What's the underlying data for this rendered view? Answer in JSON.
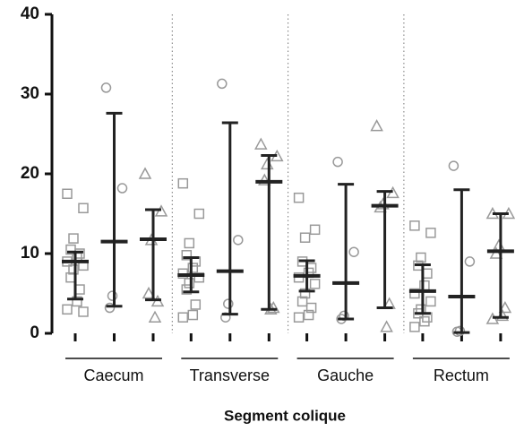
{
  "chart_data": {
    "type": "dot-plot",
    "x_label": "Segment colique",
    "categories": [
      "Caecum",
      "Transverse",
      "Gauche",
      "Rectum"
    ],
    "ylim": [
      0,
      40
    ],
    "yticks": [
      0,
      10,
      20,
      30,
      40
    ],
    "series": [
      {
        "marker": "square",
        "color": "#999999",
        "bar_color": "#222222",
        "points": [
          [
            17.5,
            15.7,
            11.9,
            10.5,
            10,
            9.5,
            9,
            8.5,
            8,
            7,
            5.5,
            4,
            3,
            2.7
          ],
          [
            18.8,
            15,
            11.3,
            9.8,
            9,
            8.2,
            7.5,
            7,
            6.3,
            5.5,
            3.6,
            2.3,
            2
          ],
          [
            17,
            13,
            12,
            9,
            8.2,
            7.6,
            7,
            6.2,
            5,
            4,
            3.2,
            2.3,
            2
          ],
          [
            13.5,
            12.6,
            9.5,
            8.5,
            7.5,
            6,
            5,
            4,
            3,
            2.5,
            2,
            1.5,
            0.8
          ]
        ],
        "means": [
          9,
          7.3,
          7.2,
          5.3
        ],
        "lower": [
          4.3,
          5.2,
          5.3,
          2.5
        ],
        "upper": [
          10.2,
          9.5,
          9.1,
          8.6
        ]
      },
      {
        "marker": "circle",
        "color": "#999999",
        "bar_color": "#222222",
        "points": [
          [
            30.8,
            18.2,
            4.7,
            3.2
          ],
          [
            31.3,
            11.7,
            3.7,
            2
          ],
          [
            21.5,
            10.2,
            2.2,
            1.8
          ],
          [
            21,
            9,
            0.3,
            0.2
          ]
        ],
        "means": [
          11.5,
          7.8,
          6.3,
          4.6
        ],
        "lower": [
          3.4,
          2.4,
          1.8,
          0.1
        ],
        "upper": [
          27.6,
          26.4,
          18.7,
          18
        ]
      },
      {
        "marker": "triangle",
        "color": "#999999",
        "bar_color": "#222222",
        "points": [
          [
            20,
            15.3,
            11.7,
            5,
            4,
            2
          ],
          [
            23.7,
            22.2,
            21.2,
            19.2,
            3.2,
            3
          ],
          [
            26,
            17.6,
            16.2,
            15.8,
            3.7,
            0.8
          ],
          [
            15,
            15,
            11,
            10,
            3.2,
            2.2,
            1.8
          ]
        ],
        "means": [
          11.8,
          19,
          16,
          10.3
        ],
        "lower": [
          4.2,
          3,
          3.2,
          2
        ],
        "upper": [
          15.5,
          22.3,
          17.8,
          15
        ]
      }
    ]
  }
}
